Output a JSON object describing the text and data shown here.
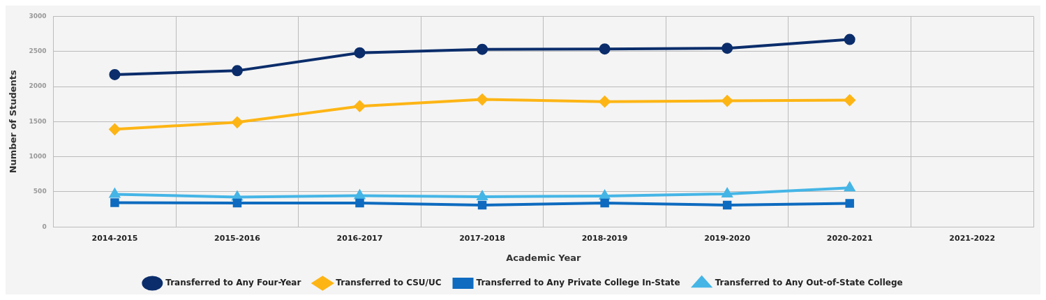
{
  "chart_data": {
    "type": "line",
    "xlabel": "Academic Year",
    "ylabel": "Number of Students",
    "categories": [
      "2014-2015",
      "2015-2016",
      "2016-2017",
      "2017-2018",
      "2018-2019",
      "2019-2020",
      "2020-2021",
      "2021-2022"
    ],
    "series": [
      {
        "name": "Transferred to Any Four-Year",
        "color": "#0b2d6b",
        "marker": "circle",
        "values": [
          2170,
          2225,
          2480,
          2530,
          2535,
          2545,
          2670,
          null
        ]
      },
      {
        "name": "Transferred to CSU/UC",
        "color": "#fdb515",
        "marker": "diamond",
        "values": [
          1390,
          1490,
          1720,
          1815,
          1785,
          1795,
          1805,
          null
        ]
      },
      {
        "name": "Transferred to Any Private College In-State",
        "color": "#0e6bbf",
        "marker": "square",
        "values": [
          345,
          340,
          340,
          310,
          340,
          310,
          335,
          null
        ]
      },
      {
        "name": "Transferred to Any Out-of-State College",
        "color": "#45b5e6",
        "marker": "triangle",
        "values": [
          465,
          425,
          445,
          430,
          440,
          470,
          555,
          null
        ]
      }
    ],
    "ylim": [
      0,
      3000
    ],
    "yticks": [
      0,
      500,
      1000,
      1500,
      2000,
      2500,
      3000
    ],
    "grid": true,
    "legend": "bottom",
    "line_style": "solid"
  }
}
